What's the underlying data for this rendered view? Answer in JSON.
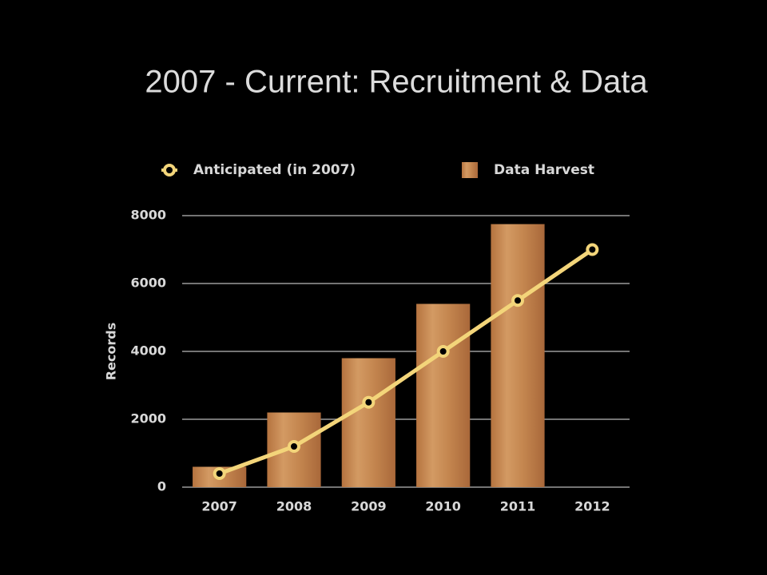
{
  "chart_data": {
    "type": "bar",
    "title": "2007 - Current:  Recruitment & Data",
    "ylabel": "Records",
    "categories": [
      "2007",
      "2008",
      "2009",
      "2010",
      "2011",
      "2012"
    ],
    "series": [
      {
        "name": "Anticipated (in 2007)",
        "type": "line",
        "color": "#f3d57a",
        "values": [
          400,
          1200,
          2500,
          4000,
          5500,
          7000
        ]
      },
      {
        "name": "Data Harvest",
        "type": "bar",
        "color": "#c4864f",
        "values": [
          600,
          2200,
          3800,
          5400,
          7750,
          null
        ]
      }
    ],
    "ylim": [
      0,
      8000
    ],
    "yticks": [
      0,
      2000,
      4000,
      6000,
      8000
    ],
    "grid": true,
    "legend": "top"
  }
}
